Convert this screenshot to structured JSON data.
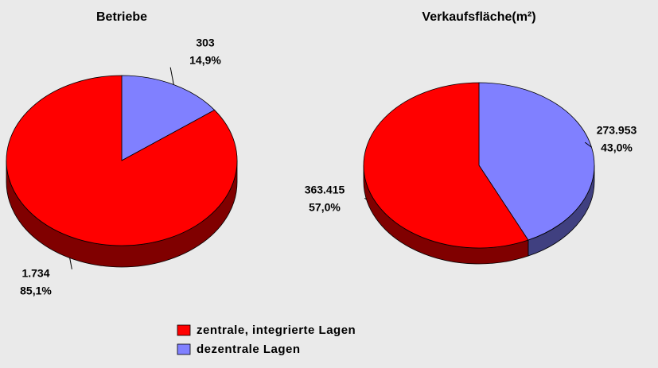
{
  "chart_data": [
    {
      "type": "pie",
      "title": "Betriebe",
      "categories": [
        "zentrale, integrierte Lagen",
        "dezentrale Lagen"
      ],
      "values": [
        1734,
        303
      ],
      "value_labels": [
        "1.734",
        "303"
      ],
      "percents": [
        85.1,
        14.9
      ],
      "percent_labels": [
        "85,1%",
        "14,9%"
      ],
      "colors": [
        "#ff0000",
        "#8080ff"
      ],
      "legend": true
    },
    {
      "type": "pie",
      "title": "Verkaufsfläche(m²)",
      "categories": [
        "zentrale, integrierte Lagen",
        "dezentrale Lagen"
      ],
      "values": [
        363415,
        273953
      ],
      "value_labels": [
        "363.415",
        "273.953"
      ],
      "percents": [
        57.0,
        43.0
      ],
      "percent_labels": [
        "57,0%",
        "43,0%"
      ],
      "colors": [
        "#ff0000",
        "#8080ff"
      ],
      "legend": false
    }
  ]
}
